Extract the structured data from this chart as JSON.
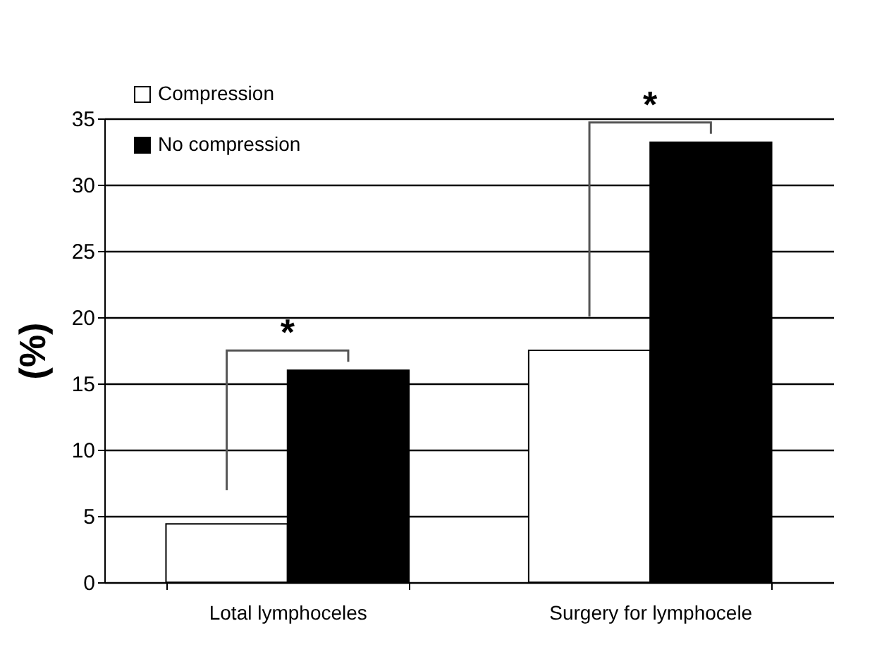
{
  "chart_data": {
    "type": "bar",
    "ylabel": "(%)",
    "categories": [
      "Lotal lymphoceles",
      "Surgery for lymphocele"
    ],
    "series": [
      {
        "name": "Compression",
        "color": "#ffffff",
        "values": [
          4.4,
          17.5
        ]
      },
      {
        "name": "No compression",
        "color": "#000000",
        "values": [
          16,
          33.2
        ]
      }
    ],
    "ylim": [
      0,
      35
    ],
    "yticks": [
      0,
      5,
      10,
      15,
      20,
      25,
      30,
      35
    ],
    "grid": "y",
    "legend": "top left",
    "annotations": [
      "*",
      "*"
    ]
  }
}
